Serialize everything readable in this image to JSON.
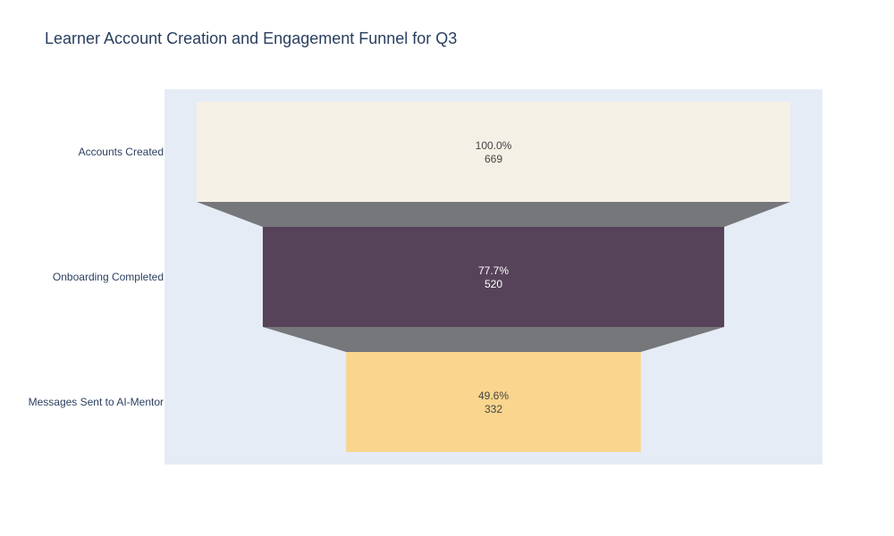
{
  "chart_data": {
    "type": "funnel",
    "title": "Learner Account Creation and Engagement Funnel for Q3",
    "stages": [
      "Accounts Created",
      "Onboarding Completed",
      "Messages Sent to AI-Mentor"
    ],
    "values": [
      669,
      520,
      332
    ],
    "percent_labels": [
      "100.0%",
      "77.7%",
      "49.6%"
    ],
    "colors": [
      "#f5f0e6",
      "#564259",
      "#f9d58d"
    ],
    "label_colors": [
      "#444444",
      "#ffffff",
      "#444444"
    ],
    "connector_color": "#75777b",
    "plot_background": "#e5ecf6"
  }
}
